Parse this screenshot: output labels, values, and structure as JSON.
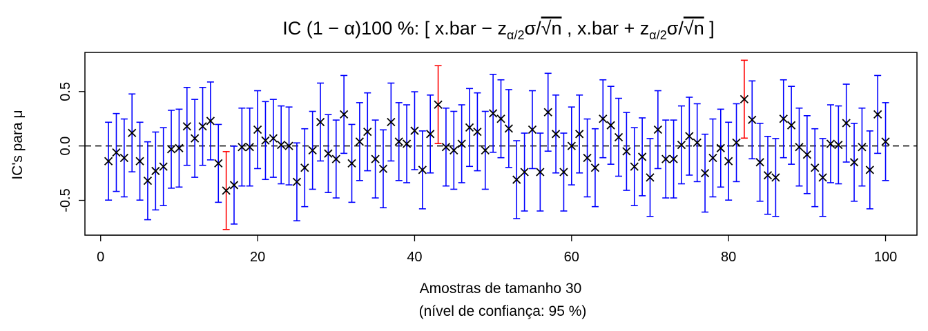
{
  "chart_data": {
    "type": "scatter",
    "title": {
      "prefix": "IC ",
      "alpha_part": "(1 − α)100 %: [ x.bar − z",
      "sub1": "α/2",
      "mid1": "σ/",
      "sqrt_n": "√n",
      "between": " ,  x.bar + z",
      "sub2": "α/2",
      "mid2": "σ/",
      "end": " ]"
    },
    "xlabel": "Amostras de tamanho 30",
    "xlabel2": "(nível de confiança:  95 %)",
    "ylabel": "IC's para μ",
    "xlim": [
      -2,
      104
    ],
    "ylim": [
      -0.82,
      0.86
    ],
    "xticks": [
      0,
      20,
      40,
      60,
      80,
      100
    ],
    "xtick_labels": [
      "0",
      "20",
      "40",
      "60",
      "80",
      "100"
    ],
    "yticks": [
      -0.5,
      0.0,
      0.5
    ],
    "ytick_labels": [
      "-0.5",
      "0.0",
      "0.5"
    ],
    "reference_line": 0.0,
    "half_width": 0.358,
    "colors": {
      "covers": "#0000ff",
      "misses": "#ff0000",
      "point": "#000000"
    },
    "x": [
      1,
      2,
      3,
      4,
      5,
      6,
      7,
      8,
      9,
      10,
      11,
      12,
      13,
      14,
      15,
      16,
      17,
      18,
      19,
      20,
      21,
      22,
      23,
      24,
      25,
      26,
      27,
      28,
      29,
      30,
      31,
      32,
      33,
      34,
      35,
      36,
      37,
      38,
      39,
      40,
      41,
      42,
      43,
      44,
      45,
      46,
      47,
      48,
      49,
      50,
      51,
      52,
      53,
      54,
      55,
      56,
      57,
      58,
      59,
      60,
      61,
      62,
      63,
      64,
      65,
      66,
      67,
      68,
      69,
      70,
      71,
      72,
      73,
      74,
      75,
      76,
      77,
      78,
      79,
      80,
      81,
      82,
      83,
      84,
      85,
      86,
      87,
      88,
      89,
      90,
      91,
      92,
      93,
      94,
      95,
      96,
      97,
      98,
      99,
      100
    ],
    "means": [
      -0.14,
      -0.06,
      -0.11,
      0.12,
      -0.14,
      -0.32,
      -0.23,
      -0.19,
      -0.03,
      -0.02,
      0.18,
      0.07,
      0.18,
      0.23,
      -0.16,
      -0.41,
      -0.36,
      -0.01,
      -0.01,
      0.15,
      0.05,
      0.07,
      0.01,
      0.0,
      -0.33,
      -0.2,
      -0.04,
      0.22,
      -0.07,
      -0.12,
      0.29,
      -0.16,
      0.04,
      0.13,
      -0.12,
      -0.21,
      0.22,
      0.04,
      0.02,
      0.14,
      -0.22,
      0.11,
      0.38,
      -0.01,
      -0.04,
      0.02,
      0.17,
      0.13,
      -0.04,
      0.3,
      0.25,
      0.16,
      -0.31,
      -0.24,
      0.15,
      -0.24,
      0.31,
      0.11,
      -0.24,
      0.0,
      0.11,
      -0.11,
      -0.2,
      0.25,
      0.19,
      0.08,
      -0.05,
      -0.19,
      -0.1,
      -0.29,
      0.15,
      -0.12,
      -0.12,
      0.01,
      0.09,
      0.03,
      -0.25,
      -0.11,
      -0.02,
      -0.14,
      0.03,
      0.43,
      0.24,
      -0.15,
      -0.27,
      -0.29,
      0.25,
      0.19,
      -0.01,
      -0.08,
      -0.2,
      -0.29,
      0.02,
      0.01,
      0.21,
      -0.15,
      -0.01,
      -0.22,
      0.29,
      0.04
    ],
    "misses_idx": [
      16,
      43,
      82
    ]
  }
}
